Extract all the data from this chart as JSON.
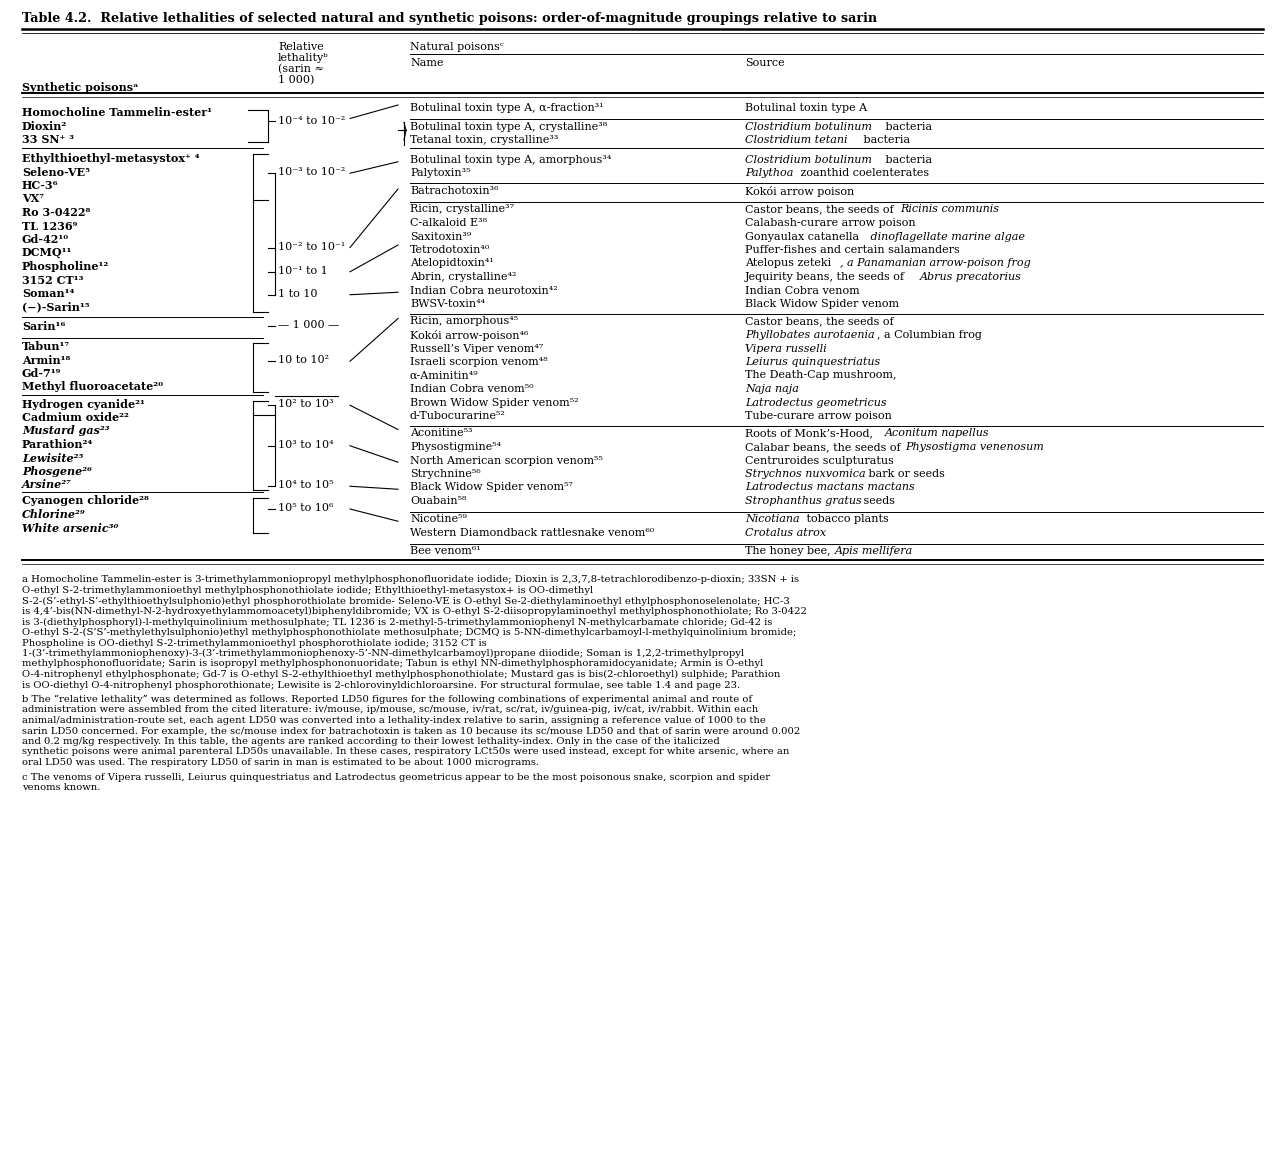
{
  "title": "Table 4.2.  Relative lethalities of selected natural and synthetic poisons: order-of-magnitude groupings relative to sarin",
  "fn1": "a Homocholine Tammelin-ester is 3-trimethylammoniopropyl methylphosphonofluoridate iodide; Dioxin is 2,3,7,8-tetrachlorodibenzo-p-dioxin; 33SN + is O-ethyl S-2-trimethylammonioethyl methylphosphonothiolate iodide; Ethylthioethyl-metasystox+ is OO-dimethyl S-2-(S’-ethyl-S’-ethylthioethylsulphonio)ethyl phosphorothiolate bromide- Seleno-VE is O-ethyl Se-2-diethylaminoethyl ethylphosphonoselenolate; HC-3 is 4,4’-bis(NN-dimethyl-N-2-hydroxyethylammomoacetyl)biphenyldibromide; VX is O-ethyl S-2-diisopropylaminoethyl methylphosphonothiolate; Ro 3-0422 is 3-(diethylphosphoryl)-l-methylquinolinium methosulphate; TL 1236 is 2-methyl-5-trimethylammoniophenyl N-methylcarbamate chloride; Gd-42 is O-ethyl S-2-(S’S’-methylethylsulphonio)ethyl methylphosphonothiolate methosulphate; DCMQ is 5-NN-dimethylcarbamoyl-l-methylquinolinium bromide; Phospholine is OO-diethyl S-2-trimethylammonioethyl phosphorothiolate iodide; 3152 CT is 1-(3’-trimethylammoniophenoxy)-3-(3’-trimethylammoniophenoxy-5’-NN-dimethylcarbamoyl)propane diiodide; Soman is 1,2,2-trimethylpropyl methylphosphonofluoridate; Sarin is isopropyl methylphosphononuoridate; Tabun is ethyl NN-dimethylphosphoramidocyanidate; Armin is O-ethyl O-4-nitrophenyl ethylphosphonate; Gd-7 is O-ethyl S-2-ethylthioethyl methylphosphonothiolate; Mustard gas is bis(2-chloroethyl) sulphide; Parathion is OO-diethyl O-4-nitrophenyl phosphorothionate; Lewisite is 2-chlorovinyldichloroarsine. For structural formulae, see table 1.4 and page 23.",
  "fn2": "b The “relative lethality” was determined as follows. Reported LD50 figures for the following combinations of experimental animal and route of administration were assembled from the cited literature: iv/mouse, ip/mouse, sc/mouse, iv/rat, sc/rat, iv/guinea-pig, iv/cat, iv/rabbit. Within each animal/administration-route set, each agent LD50 was converted into a lethality-index relative to sarin, assigning a reference value of 1000 to the sarin LD50 concerned. For example, the sc/mouse index for batrachotoxin is taken as 10 because its sc/mouse LD50 and that of sarin were around 0.002 and 0.2 mg/kg respectively. In this table, the agents are ranked according to their lowest lethality-index. Only in the case of the italicized synthetic poisons were animal parenteral LD50s unavailable. In these cases, respiratory LCt50s were used instead, except for white arsenic, where an oral LD50 was used. The respiratory LD50 of sarin in man is estimated to be about 1000 micrograms.",
  "fn3": "c The venoms of Vipera russelli, Leiurus quinquestriatus and Latrodectus geometricus appear to be the most poisonous snake, scorpion and spider venoms known."
}
